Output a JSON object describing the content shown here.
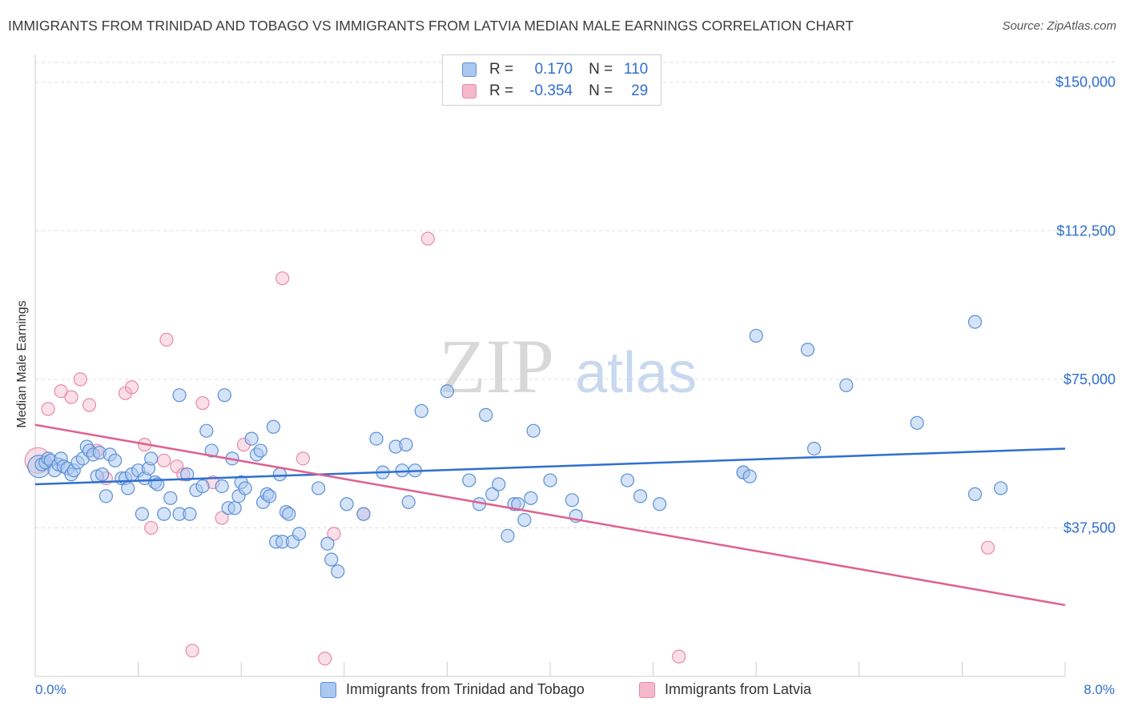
{
  "header": {
    "title": "IMMIGRANTS FROM TRINIDAD AND TOBAGO VS IMMIGRANTS FROM LATVIA MEDIAN MALE EARNINGS CORRELATION CHART",
    "source": "Source: ZipAtlas.com"
  },
  "watermark": {
    "zip": "ZIP",
    "atlas": "atlas"
  },
  "legend": {
    "r_label": "R =",
    "n_label": "N =",
    "rows": [
      {
        "r": "0.170",
        "n": "110",
        "color": "#aac8f0"
      },
      {
        "r": "-0.354",
        "n": "29",
        "color": "#f5b8cb"
      }
    ]
  },
  "colors": {
    "series1_fill": "#aac8f0",
    "series1_stroke": "#5b8fd6",
    "series1_line": "#2f6fd0",
    "series2_fill": "#f5b8cb",
    "series2_stroke": "#e88aa8",
    "series2_line": "#e06090",
    "axis_label": "#2f6fd0",
    "grid": "#dddddd"
  },
  "chart_data": {
    "type": "scatter",
    "xlabel": "",
    "ylabel": "Median Male Earnings",
    "xlim": [
      0.0,
      8.0
    ],
    "ylim": [
      0,
      155000
    ],
    "x_tick_labels": [
      "0.0%",
      "8.0%"
    ],
    "y_ticks": [
      37500,
      75000,
      112500,
      150000
    ],
    "y_tick_labels": [
      "$37,500",
      "$75,000",
      "$112,500",
      "$150,000"
    ],
    "grid": "horizontal dashed",
    "legend_position": "top-center and bottom",
    "series": [
      {
        "name": "Immigrants from Trinidad and Tobago",
        "trend": [
          [
            0.0,
            48500
          ],
          [
            8.0,
            57500
          ]
        ],
        "points": [
          [
            0.03,
            53000
          ],
          [
            0.05,
            53500
          ],
          [
            0.08,
            54000
          ],
          [
            0.1,
            55000
          ],
          [
            0.12,
            54500
          ],
          [
            0.15,
            52000
          ],
          [
            0.18,
            53500
          ],
          [
            0.2,
            55000
          ],
          [
            0.22,
            53000
          ],
          [
            0.25,
            52500
          ],
          [
            0.28,
            51000
          ],
          [
            0.3,
            52000
          ],
          [
            0.33,
            54000
          ],
          [
            0.37,
            55000
          ],
          [
            0.4,
            58000
          ],
          [
            0.42,
            57000
          ],
          [
            0.45,
            56000
          ],
          [
            0.48,
            50500
          ],
          [
            0.5,
            56500
          ],
          [
            0.52,
            51000
          ],
          [
            0.55,
            45500
          ],
          [
            0.58,
            56000
          ],
          [
            0.62,
            54500
          ],
          [
            0.67,
            50000
          ],
          [
            0.7,
            50000
          ],
          [
            0.72,
            47500
          ],
          [
            0.75,
            51000
          ],
          [
            0.8,
            52000
          ],
          [
            0.83,
            41000
          ],
          [
            0.85,
            50000
          ],
          [
            0.88,
            52500
          ],
          [
            0.9,
            55000
          ],
          [
            0.93,
            49000
          ],
          [
            0.95,
            48500
          ],
          [
            1.0,
            41000
          ],
          [
            1.05,
            45000
          ],
          [
            1.12,
            71000
          ],
          [
            1.12,
            41000
          ],
          [
            1.18,
            51000
          ],
          [
            1.2,
            41000
          ],
          [
            1.25,
            47000
          ],
          [
            1.3,
            48000
          ],
          [
            1.33,
            62000
          ],
          [
            1.37,
            57000
          ],
          [
            1.45,
            48000
          ],
          [
            1.47,
            71000
          ],
          [
            1.5,
            42500
          ],
          [
            1.53,
            55000
          ],
          [
            1.55,
            42500
          ],
          [
            1.58,
            45500
          ],
          [
            1.6,
            49000
          ],
          [
            1.63,
            47500
          ],
          [
            1.68,
            60000
          ],
          [
            1.72,
            56000
          ],
          [
            1.75,
            57000
          ],
          [
            1.77,
            44000
          ],
          [
            1.8,
            46000
          ],
          [
            1.82,
            45500
          ],
          [
            1.85,
            63000
          ],
          [
            1.87,
            34000
          ],
          [
            1.9,
            51000
          ],
          [
            1.92,
            34000
          ],
          [
            1.95,
            41500
          ],
          [
            1.97,
            41000
          ],
          [
            2.0,
            34000
          ],
          [
            2.05,
            36000
          ],
          [
            2.2,
            47500
          ],
          [
            2.27,
            33500
          ],
          [
            2.3,
            29500
          ],
          [
            2.35,
            26500
          ],
          [
            2.42,
            43500
          ],
          [
            2.55,
            41000
          ],
          [
            2.65,
            60000
          ],
          [
            2.7,
            51500
          ],
          [
            2.8,
            58000
          ],
          [
            2.85,
            52000
          ],
          [
            2.88,
            58500
          ],
          [
            2.9,
            44000
          ],
          [
            2.95,
            52000
          ],
          [
            3.0,
            67000
          ],
          [
            3.2,
            72000
          ],
          [
            3.37,
            49500
          ],
          [
            3.45,
            43500
          ],
          [
            3.5,
            66000
          ],
          [
            3.55,
            46000
          ],
          [
            3.6,
            48500
          ],
          [
            3.67,
            35500
          ],
          [
            3.72,
            43500
          ],
          [
            3.75,
            43500
          ],
          [
            3.8,
            39500
          ],
          [
            3.85,
            45000
          ],
          [
            3.87,
            62000
          ],
          [
            4.0,
            49500
          ],
          [
            4.17,
            44500
          ],
          [
            4.2,
            40500
          ],
          [
            4.6,
            49500
          ],
          [
            4.7,
            45500
          ],
          [
            4.85,
            43500
          ],
          [
            5.5,
            51500
          ],
          [
            5.5,
            51500
          ],
          [
            5.55,
            50500
          ],
          [
            5.6,
            86000
          ],
          [
            6.0,
            82500
          ],
          [
            6.05,
            57500
          ],
          [
            6.3,
            73500
          ],
          [
            6.85,
            64000
          ],
          [
            7.3,
            89500
          ],
          [
            7.3,
            46000
          ],
          [
            7.5,
            47500
          ]
        ]
      },
      {
        "name": "Immigrants from Latvia",
        "trend": [
          [
            0.0,
            63500
          ],
          [
            8.0,
            18000
          ]
        ],
        "points": [
          [
            0.02,
            54500
          ],
          [
            0.1,
            67500
          ],
          [
            0.2,
            72000
          ],
          [
            0.28,
            70500
          ],
          [
            0.35,
            75000
          ],
          [
            0.42,
            68500
          ],
          [
            0.48,
            57000
          ],
          [
            0.55,
            50000
          ],
          [
            0.7,
            71500
          ],
          [
            0.75,
            73000
          ],
          [
            0.85,
            58500
          ],
          [
            0.9,
            37500
          ],
          [
            1.0,
            54500
          ],
          [
            1.02,
            85000
          ],
          [
            1.1,
            53000
          ],
          [
            1.15,
            51000
          ],
          [
            1.22,
            6500
          ],
          [
            1.3,
            69000
          ],
          [
            1.38,
            49000
          ],
          [
            1.45,
            40000
          ],
          [
            1.62,
            58500
          ],
          [
            1.92,
            100500
          ],
          [
            2.08,
            55000
          ],
          [
            2.25,
            4500
          ],
          [
            2.32,
            36000
          ],
          [
            2.55,
            41000
          ],
          [
            3.05,
            110500
          ],
          [
            5.0,
            5000
          ],
          [
            7.4,
            32500
          ]
        ]
      }
    ]
  },
  "bottom_legend": {
    "items": [
      {
        "label": "Immigrants from Trinidad and Tobago"
      },
      {
        "label": "Immigrants from Latvia"
      }
    ]
  }
}
